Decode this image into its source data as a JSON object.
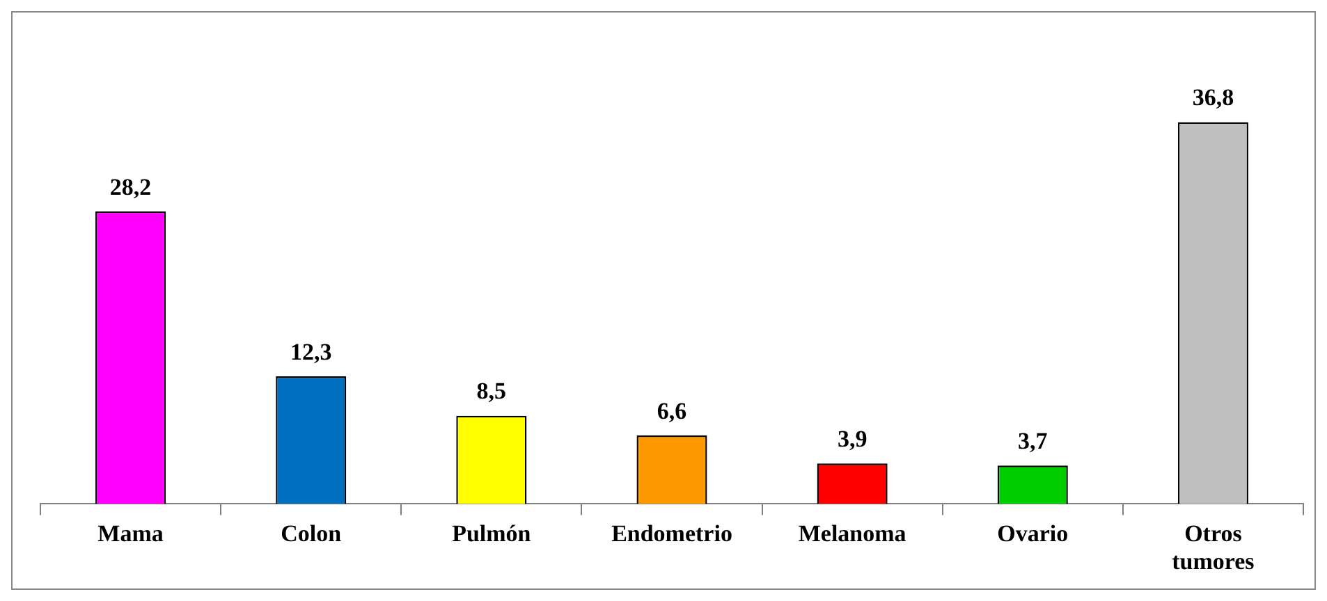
{
  "chart_data": {
    "type": "bar",
    "categories": [
      "Mama",
      "Colon",
      "Pulmón",
      "Endometrio",
      "Melanoma",
      "Ovario",
      "Otros tumores"
    ],
    "values": [
      28.2,
      12.3,
      8.5,
      6.6,
      3.9,
      3.7,
      36.8
    ],
    "value_labels": [
      "28,2",
      "12,3",
      "8,5",
      "6,6",
      "3,9",
      "3,7",
      "36,8"
    ],
    "colors": [
      "#ff00ff",
      "#0070c0",
      "#ffff00",
      "#ff9900",
      "#ff0000",
      "#00cc00",
      "#c0c0c0"
    ],
    "grid": false,
    "legend": false
  }
}
